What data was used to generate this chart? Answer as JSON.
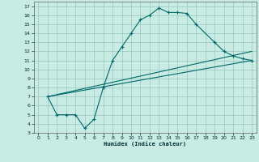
{
  "xlabel": "Humidex (Indice chaleur)",
  "background_color": "#c8ebe4",
  "grid_color": "#a0ccc4",
  "line_color": "#006868",
  "xlim": [
    -0.5,
    23.5
  ],
  "ylim": [
    3,
    17.5
  ],
  "xticks": [
    0,
    1,
    2,
    3,
    4,
    5,
    6,
    7,
    8,
    9,
    10,
    11,
    12,
    13,
    14,
    15,
    16,
    17,
    18,
    19,
    20,
    21,
    22,
    23
  ],
  "yticks": [
    3,
    4,
    5,
    6,
    7,
    8,
    9,
    10,
    11,
    12,
    13,
    14,
    15,
    16,
    17
  ],
  "series_main": {
    "x": [
      1,
      2,
      3,
      4,
      5,
      6,
      7,
      8,
      9,
      10,
      11,
      12,
      13,
      14,
      15,
      16,
      17,
      19,
      20,
      21,
      22,
      23
    ],
    "y": [
      7,
      5,
      5,
      5,
      3.5,
      4.5,
      8,
      11,
      12.5,
      14,
      15.5,
      16,
      16.8,
      16.3,
      16.3,
      16.2,
      15,
      13,
      12,
      11.5,
      11.2,
      11
    ]
  },
  "line1": {
    "x": [
      1,
      23
    ],
    "y": [
      7,
      11
    ]
  },
  "line2": {
    "x": [
      1,
      23
    ],
    "y": [
      7,
      12
    ]
  }
}
